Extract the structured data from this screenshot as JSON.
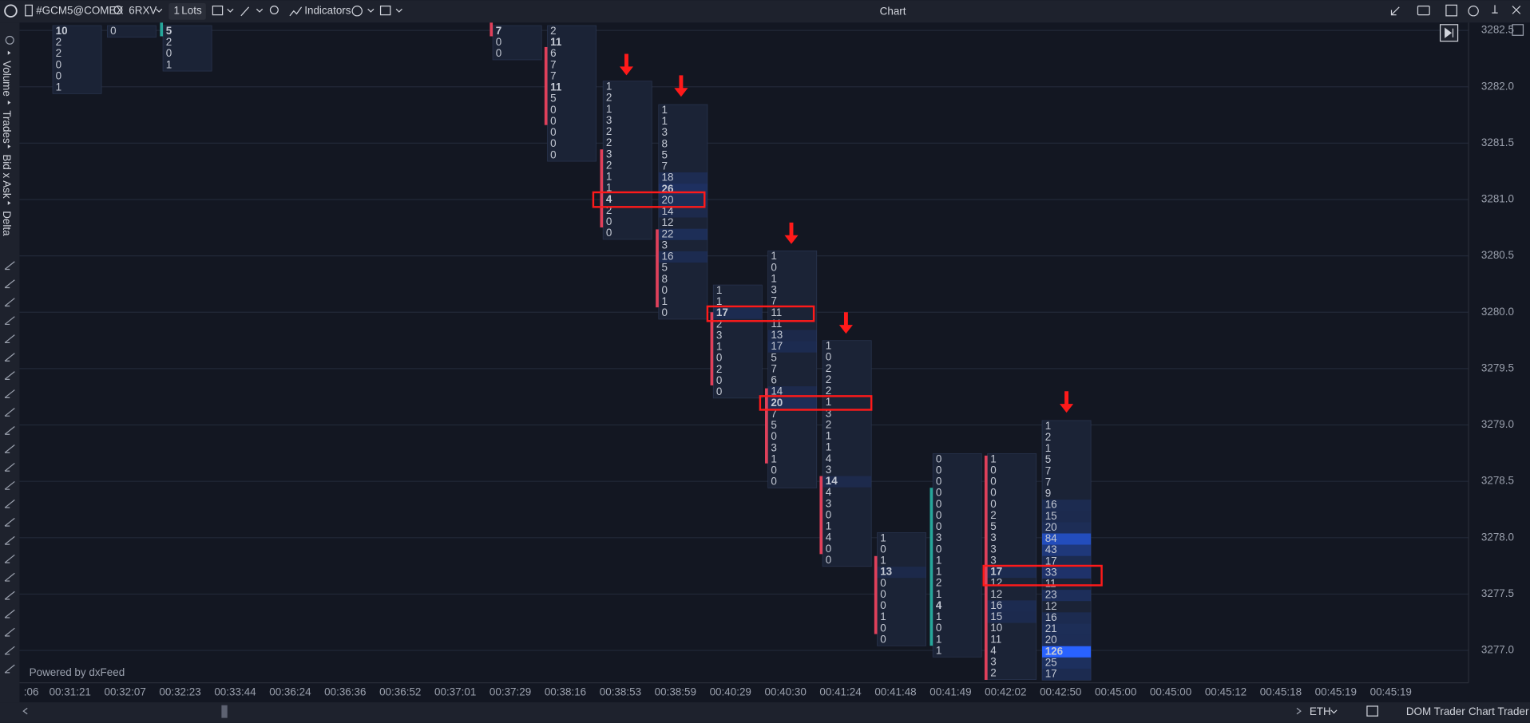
{
  "toolbar": {
    "symbol": "#GCM5@COMEX",
    "account": "6RXV",
    "quantity": "1",
    "quantity_unit": "Lots",
    "indicators": "Indicators",
    "title": "Chart"
  },
  "sidebar": {
    "tabs": [
      "Volume",
      "Trades",
      "Bid x Ask",
      "Delta"
    ]
  },
  "price_axis": {
    "labels": [
      "3282.5",
      "3282.0",
      "3281.5",
      "3281.0",
      "3280.5",
      "3280.0",
      "3279.5",
      "3279.0",
      "3278.5",
      "3278.0",
      "3277.5",
      "3277.0"
    ]
  },
  "time_axis": {
    "labels": [
      ":06",
      "00:31:21",
      "00:32:07",
      "00:32:23",
      "00:33:44",
      "00:36:24",
      "00:36:36",
      "00:36:52",
      "00:37:01",
      "00:37:29",
      "00:38:16",
      "00:38:53",
      "00:38:59",
      "00:40:29",
      "00:40:30",
      "00:41:24",
      "00:41:48",
      "00:41:49",
      "00:42:02",
      "00:42:50",
      "00:45:00",
      "00:45:00",
      "00:45:12",
      "00:45:18",
      "00:45:19",
      "00:45:19"
    ]
  },
  "footprint": {
    "columns": [
      [
        10,
        2,
        2,
        0,
        0,
        1
      ],
      [
        0
      ],
      [
        5,
        2,
        0,
        1
      ],
      [
        7,
        0,
        0
      ],
      [
        2,
        11,
        6,
        7,
        7,
        11,
        5,
        0,
        0,
        0,
        0,
        0
      ],
      [
        1,
        2,
        1,
        3,
        2,
        2,
        3,
        2,
        1,
        1,
        4,
        2,
        0,
        0
      ],
      [
        1,
        1,
        3,
        8,
        5,
        7,
        18,
        26,
        20,
        14,
        12,
        22,
        3,
        16,
        5,
        8,
        0,
        1,
        0
      ],
      [
        1,
        1,
        17,
        2,
        3,
        1,
        0,
        2,
        0,
        0
      ],
      [
        1,
        0,
        1,
        3,
        7,
        11,
        11,
        13,
        17,
        5,
        7,
        6,
        14,
        20,
        7,
        5,
        0,
        3,
        1,
        0,
        0
      ],
      [
        1,
        0,
        2,
        2,
        2,
        1,
        3,
        2,
        1,
        1,
        4,
        3,
        14,
        4,
        3,
        0,
        1,
        4,
        0,
        0
      ],
      [
        1,
        0,
        1,
        13,
        0,
        0,
        0,
        1,
        0,
        0
      ],
      [
        0,
        0,
        0,
        0,
        0,
        0,
        0,
        3,
        0,
        1,
        1,
        2,
        1,
        4,
        1,
        0,
        1,
        1
      ],
      [
        1,
        0,
        0,
        0,
        0,
        2,
        5,
        3,
        3,
        3,
        17,
        12,
        12,
        16,
        15,
        10,
        11,
        4,
        3,
        2
      ],
      [
        1,
        2,
        1,
        5,
        7,
        7,
        9,
        16,
        15,
        20,
        84,
        43,
        17,
        33,
        11,
        23,
        12,
        16,
        21,
        20,
        126,
        25,
        17
      ]
    ]
  },
  "footer": {
    "credit": "Powered by dxFeed",
    "session": "ETH",
    "buttons": [
      "DOM Trader",
      "Chart Trader"
    ]
  }
}
